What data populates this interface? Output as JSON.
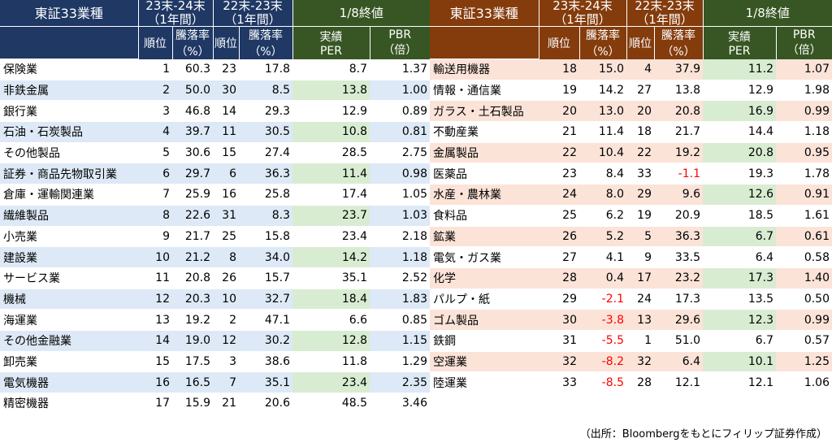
{
  "headers": {
    "sector": "東証33業種",
    "period_1_line1": "23末-24末",
    "period_1_line2": "（1年間）",
    "period_2_line1": "22末-23末",
    "period_2_line2": "（1年間）",
    "close": "1/8終値",
    "rank": "順位",
    "change_line1": "騰落率",
    "change_line2": "（%）",
    "per_line1": "実績",
    "per_line2": "PER",
    "pbr_line1": "PBR",
    "pbr_line2": "（倍）"
  },
  "left_rows": [
    {
      "name": "保険業",
      "rank_24": "1",
      "chg_24": "60.3",
      "rank_23": "23",
      "chg_23": "17.8",
      "per": "8.7",
      "pbr": "1.37"
    },
    {
      "name": "非鉄金属",
      "rank_24": "2",
      "chg_24": "50.0",
      "rank_23": "30",
      "chg_23": "8.5",
      "per": "13.8",
      "pbr": "1.00"
    },
    {
      "name": "銀行業",
      "rank_24": "3",
      "chg_24": "46.8",
      "rank_23": "14",
      "chg_23": "29.3",
      "per": "12.9",
      "pbr": "0.89"
    },
    {
      "name": "石油・石炭製品",
      "rank_24": "4",
      "chg_24": "39.7",
      "rank_23": "11",
      "chg_23": "30.5",
      "per": "10.8",
      "pbr": "0.81"
    },
    {
      "name": "その他製品",
      "rank_24": "5",
      "chg_24": "30.6",
      "rank_23": "15",
      "chg_23": "27.4",
      "per": "28.5",
      "pbr": "2.75"
    },
    {
      "name": "証券・商品先物取引業",
      "rank_24": "6",
      "chg_24": "29.7",
      "rank_23": "6",
      "chg_23": "36.3",
      "per": "11.4",
      "pbr": "0.98"
    },
    {
      "name": "倉庫・運輸関連業",
      "rank_24": "7",
      "chg_24": "25.9",
      "rank_23": "16",
      "chg_23": "25.8",
      "per": "17.4",
      "pbr": "1.05"
    },
    {
      "name": "繊維製品",
      "rank_24": "8",
      "chg_24": "22.6",
      "rank_23": "31",
      "chg_23": "8.3",
      "per": "23.7",
      "pbr": "1.03"
    },
    {
      "name": "小売業",
      "rank_24": "9",
      "chg_24": "21.7",
      "rank_23": "25",
      "chg_23": "15.8",
      "per": "23.4",
      "pbr": "2.18"
    },
    {
      "name": "建設業",
      "rank_24": "10",
      "chg_24": "21.2",
      "rank_23": "8",
      "chg_23": "34.0",
      "per": "14.2",
      "pbr": "1.18"
    },
    {
      "name": "サービス業",
      "rank_24": "11",
      "chg_24": "20.8",
      "rank_23": "26",
      "chg_23": "15.7",
      "per": "35.1",
      "pbr": "2.52"
    },
    {
      "name": "機械",
      "rank_24": "12",
      "chg_24": "20.3",
      "rank_23": "10",
      "chg_23": "32.7",
      "per": "18.4",
      "pbr": "1.83"
    },
    {
      "name": "海運業",
      "rank_24": "13",
      "chg_24": "19.2",
      "rank_23": "2",
      "chg_23": "47.1",
      "per": "6.6",
      "pbr": "0.85"
    },
    {
      "name": "その他金融業",
      "rank_24": "14",
      "chg_24": "19.0",
      "rank_23": "12",
      "chg_23": "30.2",
      "per": "12.8",
      "pbr": "1.15"
    },
    {
      "name": "卸売業",
      "rank_24": "15",
      "chg_24": "17.5",
      "rank_23": "3",
      "chg_23": "38.6",
      "per": "11.8",
      "pbr": "1.29"
    },
    {
      "name": "電気機器",
      "rank_24": "16",
      "chg_24": "16.5",
      "rank_23": "7",
      "chg_23": "35.1",
      "per": "23.4",
      "pbr": "2.35"
    },
    {
      "name": "精密機器",
      "rank_24": "17",
      "chg_24": "15.9",
      "rank_23": "21",
      "chg_23": "20.6",
      "per": "48.5",
      "pbr": "3.46"
    }
  ],
  "right_rows": [
    {
      "name": "輸送用機器",
      "rank_24": "18",
      "chg_24": "15.0",
      "rank_23": "4",
      "chg_23": "37.9",
      "per": "11.2",
      "pbr": "1.07"
    },
    {
      "name": "情報・通信業",
      "rank_24": "19",
      "chg_24": "14.2",
      "rank_23": "27",
      "chg_23": "13.8",
      "per": "12.9",
      "pbr": "1.98"
    },
    {
      "name": "ガラス・土石製品",
      "rank_24": "20",
      "chg_24": "13.0",
      "rank_23": "20",
      "chg_23": "20.8",
      "per": "16.9",
      "pbr": "0.99"
    },
    {
      "name": "不動産業",
      "rank_24": "21",
      "chg_24": "11.4",
      "rank_23": "18",
      "chg_23": "21.7",
      "per": "14.4",
      "pbr": "1.18"
    },
    {
      "name": "金属製品",
      "rank_24": "22",
      "chg_24": "10.4",
      "rank_23": "22",
      "chg_23": "19.2",
      "per": "20.8",
      "pbr": "0.95"
    },
    {
      "name": "医薬品",
      "rank_24": "23",
      "chg_24": "8.4",
      "rank_23": "33",
      "chg_23": "-1.1",
      "per": "19.3",
      "pbr": "1.78"
    },
    {
      "name": "水産・農林業",
      "rank_24": "24",
      "chg_24": "8.0",
      "rank_23": "29",
      "chg_23": "9.6",
      "per": "12.6",
      "pbr": "0.91"
    },
    {
      "name": "食料品",
      "rank_24": "25",
      "chg_24": "6.2",
      "rank_23": "19",
      "chg_23": "20.9",
      "per": "18.5",
      "pbr": "1.61"
    },
    {
      "name": "鉱業",
      "rank_24": "26",
      "chg_24": "5.2",
      "rank_23": "5",
      "chg_23": "36.3",
      "per": "6.7",
      "pbr": "0.61"
    },
    {
      "name": "電気・ガス業",
      "rank_24": "27",
      "chg_24": "4.1",
      "rank_23": "9",
      "chg_23": "33.5",
      "per": "6.4",
      "pbr": "0.58"
    },
    {
      "name": "化学",
      "rank_24": "28",
      "chg_24": "0.4",
      "rank_23": "17",
      "chg_23": "23.2",
      "per": "17.3",
      "pbr": "1.40"
    },
    {
      "name": "パルプ・紙",
      "rank_24": "29",
      "chg_24": "-2.1",
      "rank_23": "24",
      "chg_23": "17.3",
      "per": "13.5",
      "pbr": "0.50"
    },
    {
      "name": "ゴム製品",
      "rank_24": "30",
      "chg_24": "-3.8",
      "rank_23": "13",
      "chg_23": "29.6",
      "per": "12.3",
      "pbr": "0.99"
    },
    {
      "name": "鉄鋼",
      "rank_24": "31",
      "chg_24": "-5.5",
      "rank_23": "1",
      "chg_23": "51.0",
      "per": "6.7",
      "pbr": "0.57"
    },
    {
      "name": "空運業",
      "rank_24": "32",
      "chg_24": "-8.2",
      "rank_23": "32",
      "chg_23": "6.4",
      "per": "10.1",
      "pbr": "1.25"
    },
    {
      "name": "陸運業",
      "rank_24": "33",
      "chg_24": "-8.5",
      "rank_23": "28",
      "chg_23": "12.1",
      "per": "12.1",
      "pbr": "1.06"
    }
  ],
  "source_note": "（出所：Bloombergをもとにフィリップ証券作成）",
  "colors": {
    "navy_header": "#1f3864",
    "brown_header": "#843c0c",
    "green_header": "#375623",
    "blue_row": "#dde9f6",
    "pink_row": "#fbe3d8",
    "green_row": "#d8ecd2",
    "negative": "#ff0000"
  }
}
